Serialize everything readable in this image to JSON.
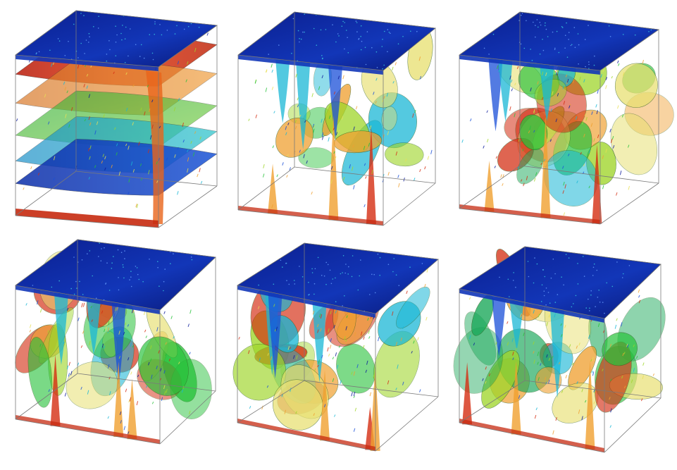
{
  "figure": {
    "panels": [
      {
        "id": "cube-1",
        "row": 1,
        "col": 1,
        "state": "stratified"
      },
      {
        "id": "cube-2",
        "row": 1,
        "col": 2,
        "state": "early-plumes"
      },
      {
        "id": "cube-3",
        "row": 1,
        "col": 3,
        "state": "plumes"
      },
      {
        "id": "cube-4",
        "row": 2,
        "col": 1,
        "state": "mixed"
      },
      {
        "id": "cube-5",
        "row": 2,
        "col": 2,
        "state": "mixed"
      },
      {
        "id": "cube-6",
        "row": 2,
        "col": 3,
        "state": "large-scale-roll"
      }
    ],
    "colormap": [
      "#0a1a9a",
      "#1a4fd8",
      "#19b7d6",
      "#27c23a",
      "#9fd62a",
      "#e8e055",
      "#f0a030",
      "#d42d12"
    ]
  }
}
